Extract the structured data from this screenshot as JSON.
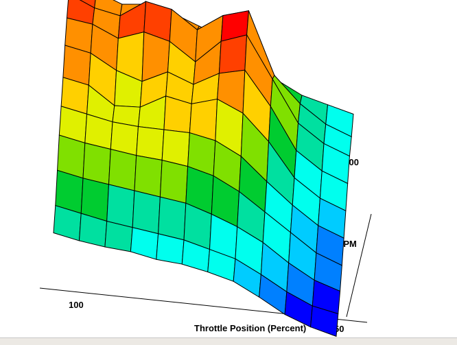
{
  "chart_data": {
    "type": "surface3d",
    "title": "",
    "xlabel": "Throttle Position (Percent)",
    "ylabel": "RPM",
    "x_tick_labels": [
      "100",
      "50"
    ],
    "y_tick_labels": [
      "1000"
    ],
    "colormap": [
      "#0000ff",
      "#0080ff",
      "#00ccff",
      "#00ffee",
      "#00e0a0",
      "#00cc30",
      "#80e000",
      "#e0f000",
      "#ffd000",
      "#ff9000",
      "#ff4000",
      "#ff0000"
    ],
    "z_range": [
      0,
      100
    ],
    "z": [
      [
        35,
        33,
        32,
        32,
        30,
        30,
        28,
        25,
        18,
        10,
        5,
        2
      ],
      [
        40,
        38,
        36,
        35,
        34,
        33,
        30,
        27,
        20,
        12,
        6,
        4
      ],
      [
        50,
        48,
        47,
        46,
        45,
        44,
        40,
        35,
        28,
        18,
        10,
        6
      ],
      [
        60,
        58,
        57,
        56,
        56,
        55,
        52,
        45,
        35,
        25,
        15,
        10
      ],
      [
        66,
        64,
        62,
        62,
        63,
        64,
        62,
        55,
        42,
        30,
        20,
        15
      ],
      [
        72,
        70,
        60,
        62,
        72,
        70,
        76,
        70,
        55,
        35,
        25,
        20
      ],
      [
        80,
        78,
        70,
        66,
        75,
        70,
        80,
        85,
        65,
        40,
        30,
        25
      ],
      [
        85,
        84,
        78,
        85,
        82,
        72,
        88,
        95,
        70,
        45,
        35,
        30
      ],
      [
        88,
        82,
        80,
        92,
        90,
        80,
        92,
        98,
        60,
        45,
        35,
        30
      ],
      [
        90,
        80,
        75,
        78,
        75,
        70,
        65,
        55,
        45,
        38,
        35,
        32
      ]
    ]
  }
}
